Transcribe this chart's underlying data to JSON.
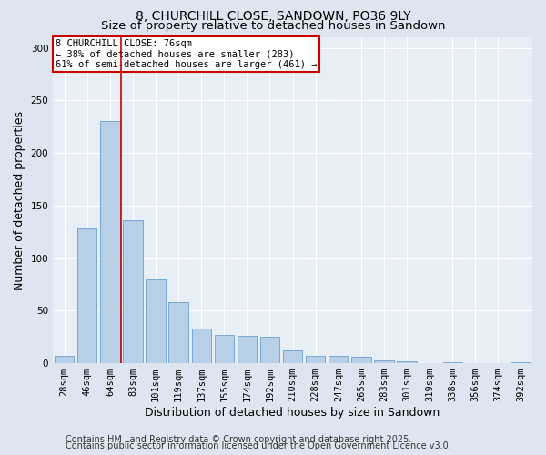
{
  "title1": "8, CHURCHILL CLOSE, SANDOWN, PO36 9LY",
  "title2": "Size of property relative to detached houses in Sandown",
  "xlabel": "Distribution of detached houses by size in Sandown",
  "ylabel": "Number of detached properties",
  "categories": [
    "28sqm",
    "46sqm",
    "64sqm",
    "83sqm",
    "101sqm",
    "119sqm",
    "137sqm",
    "155sqm",
    "174sqm",
    "192sqm",
    "210sqm",
    "228sqm",
    "247sqm",
    "265sqm",
    "283sqm",
    "301sqm",
    "319sqm",
    "338sqm",
    "356sqm",
    "374sqm",
    "392sqm"
  ],
  "values": [
    7,
    128,
    230,
    136,
    80,
    58,
    33,
    27,
    26,
    25,
    12,
    7,
    7,
    6,
    3,
    2,
    0,
    1,
    0,
    0,
    1
  ],
  "bar_color": "#b8cfe8",
  "bar_edge_color": "#6a9fd0",
  "vline_color": "#cc0000",
  "annotation_text": "8 CHURCHILL CLOSE: 76sqm\n← 38% of detached houses are smaller (283)\n61% of semi-detached houses are larger (461) →",
  "annotation_box_color": "#ffffff",
  "annotation_box_edge": "#cc0000",
  "annotation_fontsize": 7.5,
  "ylim": [
    0,
    310
  ],
  "yticks": [
    0,
    50,
    100,
    150,
    200,
    250,
    300
  ],
  "bg_color": "#dde6f0",
  "plot_bg_color": "#e8eef5",
  "footer1": "Contains HM Land Registry data © Crown copyright and database right 2025.",
  "footer2": "Contains public sector information licensed under the Open Government Licence v3.0.",
  "title1_fontsize": 10,
  "title2_fontsize": 9.5,
  "axis_label_fontsize": 9,
  "tick_fontsize": 7.5,
  "footer_fontsize": 7
}
